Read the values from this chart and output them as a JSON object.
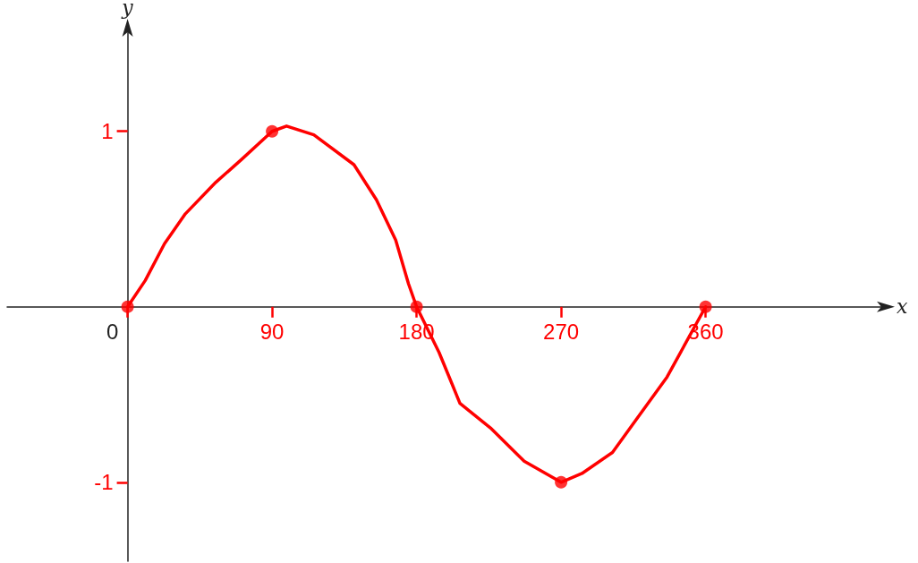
{
  "chart_data": {
    "type": "line",
    "xlabel": "x",
    "ylabel": "y",
    "xlim": [
      -75,
      470
    ],
    "ylim": [
      -1.45,
      1.57
    ],
    "xticks": [
      0,
      90,
      180,
      270,
      360
    ],
    "yticks": [
      -1,
      1
    ],
    "grid": false,
    "series": [
      {
        "color": "#ff0000",
        "marker": "none",
        "x": [
          0,
          11,
          23,
          36,
          55,
          71,
          90,
          99,
          116,
          141,
          155,
          167,
          175,
          180,
          194,
          207,
          226,
          247,
          270,
          283,
          302,
          317,
          336,
          360
        ],
        "values": [
          0,
          0.15,
          0.36,
          0.53,
          0.71,
          0.84,
          1,
          1.03,
          0.98,
          0.81,
          0.61,
          0.38,
          0.13,
          0,
          -0.26,
          -0.55,
          -0.69,
          -0.88,
          -1,
          -0.95,
          -0.83,
          -0.64,
          -0.4,
          0
        ]
      },
      {
        "type": "scatter",
        "color": "#ff0000",
        "marker": "circle",
        "x": [
          0,
          90,
          180,
          270,
          360
        ],
        "values": [
          0,
          1,
          0,
          -1,
          0
        ]
      }
    ]
  }
}
